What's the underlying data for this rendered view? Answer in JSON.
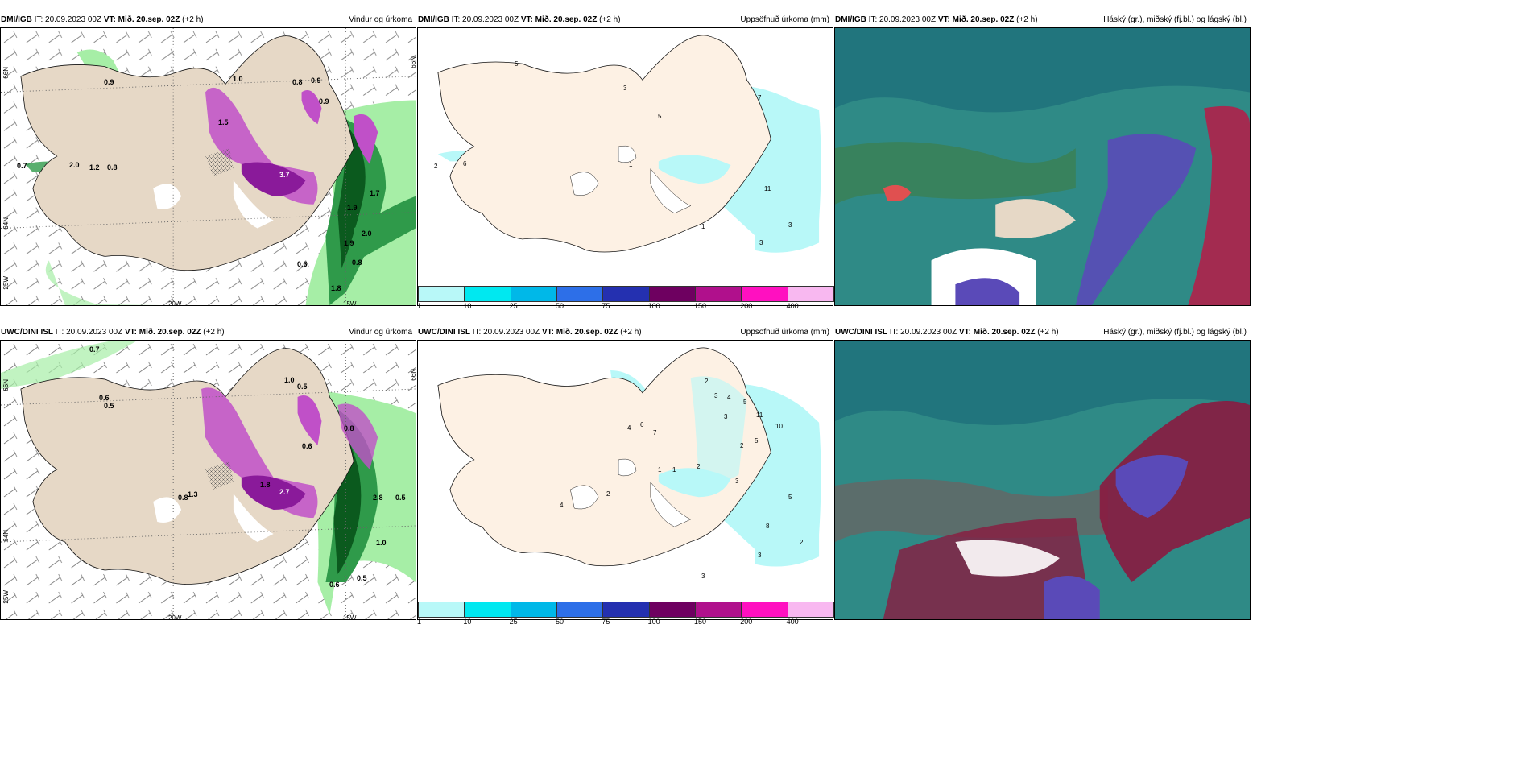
{
  "panels": [
    {
      "id": "dmi-wind",
      "model": "DMI/IGB",
      "it_label": "IT: 20.09.2023 00Z",
      "vt_label": "VT: Mið. 20.sep. 02Z",
      "offset": "(+2 h)",
      "title": "Vindur og úrkoma",
      "axes": [
        "20W",
        "15W",
        "66N",
        "64N",
        "25W",
        "66N"
      ],
      "values": [
        "0.9",
        "1.0",
        "0.9",
        "0.9",
        "0.8",
        "0.7",
        "2.0",
        "1.2",
        "0.8",
        "3.7",
        "0.6",
        "0.8",
        "1.9",
        "1.7",
        "1.9",
        "2.0",
        "1.8",
        "1.5"
      ]
    },
    {
      "id": "dmi-precip",
      "model": "DMI/IGB",
      "it_label": "IT: 20.09.2023 00Z",
      "vt_label": "VT: Mið. 20.sep. 02Z",
      "offset": "(+2 h)",
      "title": "Uppsöfnuð úrkoma (mm)",
      "values": [
        "3",
        "5",
        "7",
        "1",
        "2",
        "6",
        "5",
        "11",
        "3",
        "3",
        "1"
      ]
    },
    {
      "id": "dmi-cloud",
      "model": "DMI/IGB",
      "it_label": "IT: 20.09.2023 00Z",
      "vt_label": "VT: Mið. 20.sep. 02Z",
      "offset": "(+2 h)",
      "title": "Háský (gr.), miðský (fj.bl.) og lágský (bl.)"
    },
    {
      "id": "uwc-wind",
      "model": "UWC/DINI ISL",
      "it_label": "IT: 20.09.2023 00Z",
      "vt_label": "VT: Mið. 20.sep. 02Z",
      "offset": "(+2 h)",
      "title": "Vindur og úrkoma",
      "axes": [
        "20W",
        "15W",
        "66N",
        "64N",
        "25W",
        "66N"
      ],
      "values": [
        "0.7",
        "0.6",
        "0.5",
        "1.0",
        "0.5",
        "0.8",
        "1.3",
        "1.8",
        "0.6",
        "2.8",
        "0.5",
        "1.0",
        "0.5",
        "0.6",
        "2.7",
        "0.8"
      ]
    },
    {
      "id": "uwc-precip",
      "model": "UWC/DINI ISL",
      "it_label": "IT: 20.09.2023 00Z",
      "vt_label": "VT: Mið. 20.sep. 02Z",
      "offset": "(+2 h)",
      "title": "Uppsöfnuð úrkoma (mm)",
      "values": [
        "2",
        "3",
        "4",
        "5",
        "11",
        "10",
        "3",
        "5",
        "2",
        "6",
        "7",
        "4",
        "1",
        "1",
        "2",
        "3",
        "5",
        "8",
        "2",
        "3",
        "4",
        "2",
        "3"
      ]
    },
    {
      "id": "uwc-cloud",
      "model": "UWC/DINI ISL",
      "it_label": "IT: 20.09.2023 00Z",
      "vt_label": "VT: Mið. 20.sep. 02Z",
      "offset": "(+2 h)",
      "title": "Háský (gr.), miðský (fj.bl.) og lágský (bl.)"
    }
  ],
  "colorbar": {
    "ticks": [
      "1",
      "10",
      "25",
      "50",
      "75",
      "100",
      "150",
      "200",
      "400"
    ],
    "colors": [
      "#b8f8f8",
      "#00e8f0",
      "#00b8e8",
      "#2d6fe8",
      "#2430b0",
      "#6e0060",
      "#b0108c",
      "#ff10c0",
      "#f8b8f0"
    ]
  },
  "colors": {
    "land": "#e6d8c6",
    "land_precip": "#fdf1e4",
    "precip_light": "#b8f8f8",
    "green_light": "#a6eea6",
    "green_dark": "#0b5a1e",
    "magenta": "#c050c8",
    "cloud_base": "#2f8a86"
  }
}
